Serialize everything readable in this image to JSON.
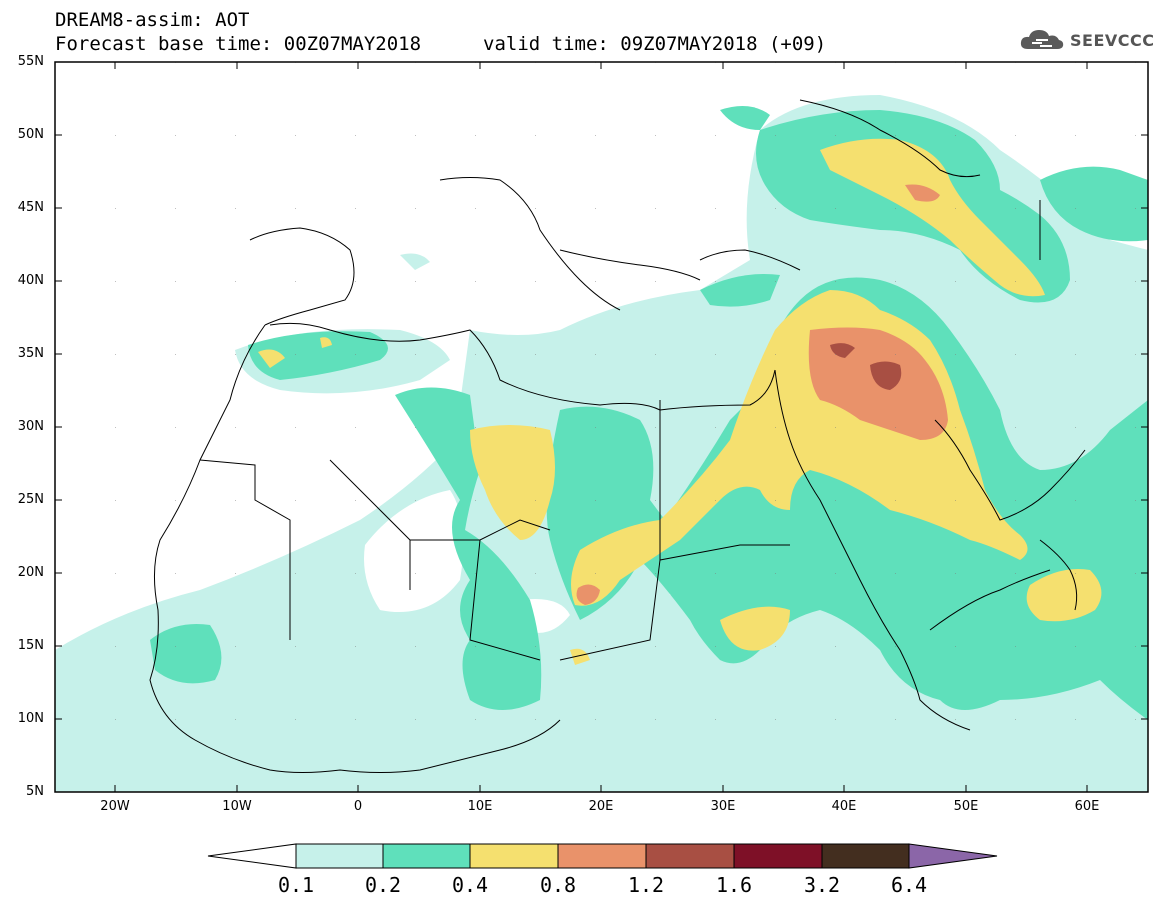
{
  "header": {
    "title_line1": "DREAM8-assim: AOT",
    "title_line2": "Forecast base time: 00Z07MAY2018",
    "valid_time": "valid time: 09Z07MAY2018 (+09)",
    "logo_text": "SEEVCCC"
  },
  "axes": {
    "lat_labels": [
      "55N",
      "50N",
      "45N",
      "40N",
      "35N",
      "30N",
      "25N",
      "20N",
      "15N",
      "10N",
      "5N"
    ],
    "lon_labels": [
      "20W",
      "10W",
      "0",
      "10E",
      "20E",
      "30E",
      "40E",
      "50E",
      "60E"
    ]
  },
  "colorbar": {
    "labels": [
      "0.1",
      "0.2",
      "0.4",
      "0.8",
      "1.2",
      "1.6",
      "3.2",
      "6.4"
    ],
    "colors": [
      "#ffffff",
      "#c6f1ea",
      "#5fe0bb",
      "#f5e06f",
      "#e9926a",
      "#a84f43",
      "#7e1027",
      "#432e1f",
      "#8b66a8"
    ]
  },
  "legend_colors": {
    "aot_0_1": "#c6f1ea",
    "aot_0_2": "#5fe0bb",
    "aot_0_4": "#f5e06f",
    "aot_0_8": "#e9926a",
    "aot_1_2": "#a84f43",
    "land_outline": "#000000"
  }
}
